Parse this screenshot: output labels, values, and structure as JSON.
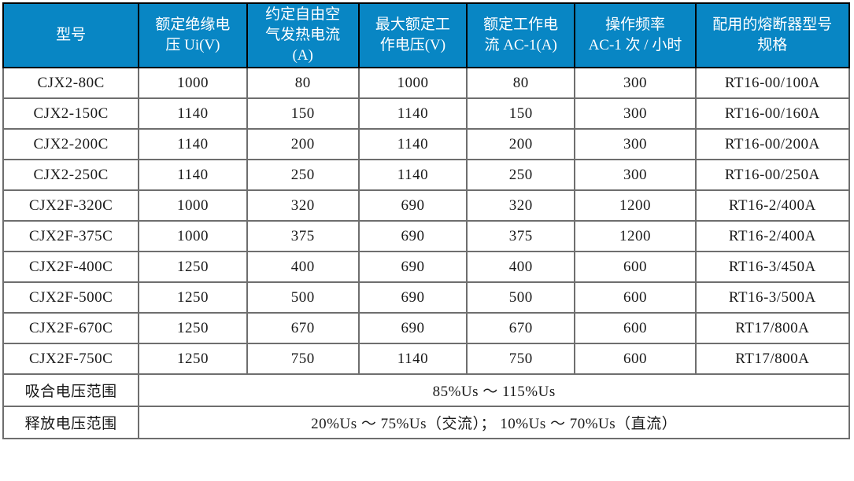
{
  "table": {
    "headers": [
      "型号",
      "额定绝缘电\n压 Ui(V)",
      "约定自由空\n气发热电流\n(A)",
      "最大额定工\n作电压(V)",
      "额定工作电\n流 AC-1(A)",
      "操作频率\nAC-1 次 / 小时",
      "配用的熔断器型号\n规格"
    ],
    "rows": [
      [
        "CJX2-80C",
        "1000",
        "80",
        "1000",
        "80",
        "300",
        "RT16-00/100A"
      ],
      [
        "CJX2-150C",
        "1140",
        "150",
        "1140",
        "150",
        "300",
        "RT16-00/160A"
      ],
      [
        "CJX2-200C",
        "1140",
        "200",
        "1140",
        "200",
        "300",
        "RT16-00/200A"
      ],
      [
        "CJX2-250C",
        "1140",
        "250",
        "1140",
        "250",
        "300",
        "RT16-00/250A"
      ],
      [
        "CJX2F-320C",
        "1000",
        "320",
        "690",
        "320",
        "1200",
        "RT16-2/400A"
      ],
      [
        "CJX2F-375C",
        "1000",
        "375",
        "690",
        "375",
        "1200",
        "RT16-2/400A"
      ],
      [
        "CJX2F-400C",
        "1250",
        "400",
        "690",
        "400",
        "600",
        "RT16-3/450A"
      ],
      [
        "CJX2F-500C",
        "1250",
        "500",
        "690",
        "500",
        "600",
        "RT16-3/500A"
      ],
      [
        "CJX2F-670C",
        "1250",
        "670",
        "690",
        "670",
        "600",
        "RT17/800A"
      ],
      [
        "CJX2F-750C",
        "1250",
        "750",
        "1140",
        "750",
        "600",
        "RT17/800A"
      ]
    ],
    "footer": [
      {
        "label": "吸合电压范围",
        "value": "85%Us ～ 115%Us"
      },
      {
        "label": "释放电压范围",
        "value": "20%Us ～ 75%Us（交流）； 10%Us ～ 70%Us（直流）"
      }
    ],
    "colors": {
      "header_bg": "#0886c4",
      "header_text": "#ffffff",
      "grid_line": "#6e6e6e",
      "outer_border": "#262626",
      "body_text": "#1a1a1a"
    }
  }
}
